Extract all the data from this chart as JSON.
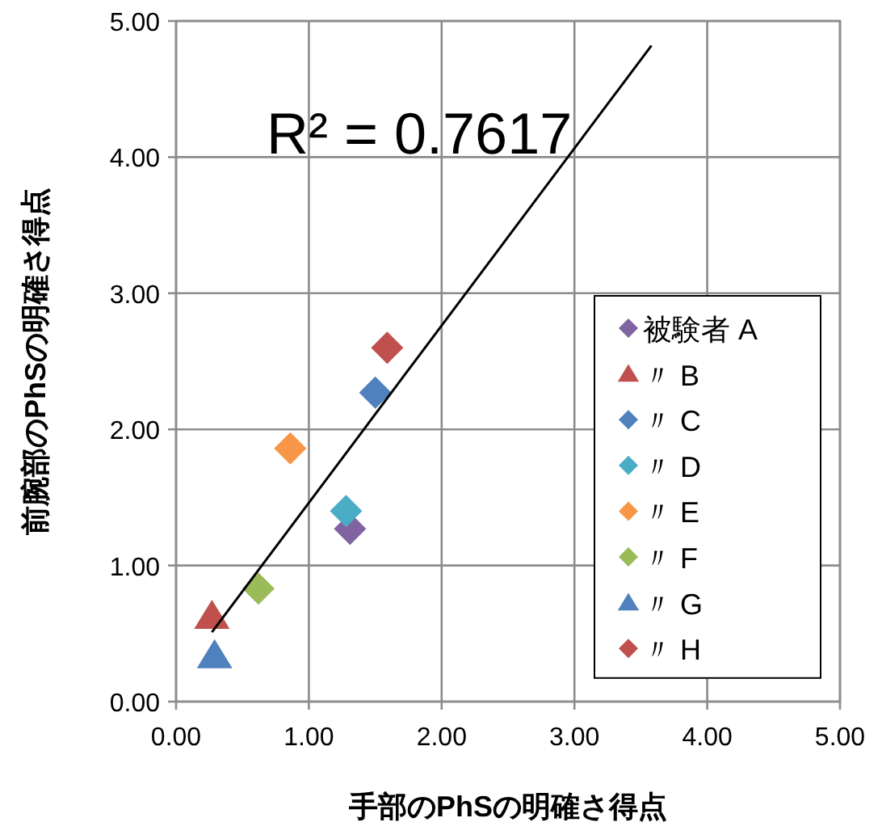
{
  "chart_data": {
    "type": "scatter",
    "xlabel": "手部のPhSの明確さ得点",
    "ylabel": "前腕部のPhSの明確さ得点",
    "xlim": [
      0,
      5
    ],
    "ylim": [
      0,
      5
    ],
    "xticks": [
      {
        "value": 0,
        "label": "0.00"
      },
      {
        "value": 1,
        "label": "1.00"
      },
      {
        "value": 2,
        "label": "2.00"
      },
      {
        "value": 3,
        "label": "3.00"
      },
      {
        "value": 4,
        "label": "4.00"
      },
      {
        "value": 5,
        "label": "5.00"
      }
    ],
    "yticks": [
      {
        "value": 0,
        "label": "0.00"
      },
      {
        "value": 1,
        "label": "1.00"
      },
      {
        "value": 2,
        "label": "2.00"
      },
      {
        "value": 3,
        "label": "3.00"
      },
      {
        "value": 4,
        "label": "4.00"
      },
      {
        "value": 5,
        "label": "5.00"
      }
    ],
    "grid": true,
    "legend": "right",
    "annotations": [
      "R² = 0.7617"
    ],
    "series": [
      {
        "name": "被験者 A",
        "color": "#8064a2",
        "marker": "diamond",
        "x": [
          1.31
        ],
        "values": [
          1.27
        ]
      },
      {
        "name": "〃 B",
        "color": "#c0504d",
        "marker": "triangle",
        "x": [
          0.27
        ],
        "values": [
          0.63
        ]
      },
      {
        "name": "〃 C",
        "color": "#4f81bd",
        "marker": "diamond",
        "x": [
          1.5
        ],
        "values": [
          2.27
        ]
      },
      {
        "name": "〃 D",
        "color": "#4bacc6",
        "marker": "diamond",
        "x": [
          1.28
        ],
        "values": [
          1.4
        ]
      },
      {
        "name": "〃 E",
        "color": "#f79646",
        "marker": "diamond",
        "x": [
          0.86
        ],
        "values": [
          1.86
        ]
      },
      {
        "name": "〃 F",
        "color": "#9bbb59",
        "marker": "diamond",
        "x": [
          0.62
        ],
        "values": [
          0.83
        ]
      },
      {
        "name": "〃 G",
        "color": "#4f81bd",
        "marker": "triangle",
        "x": [
          0.29
        ],
        "values": [
          0.34
        ]
      },
      {
        "name": "〃 H",
        "color": "#c0504d",
        "marker": "diamond",
        "x": [
          1.59
        ],
        "values": [
          2.6
        ]
      },
      {
        "type": "line",
        "color": "#000000",
        "marker": "none",
        "x": [
          0.27,
          3.58
        ],
        "values": [
          0.51,
          4.82
        ]
      }
    ]
  }
}
